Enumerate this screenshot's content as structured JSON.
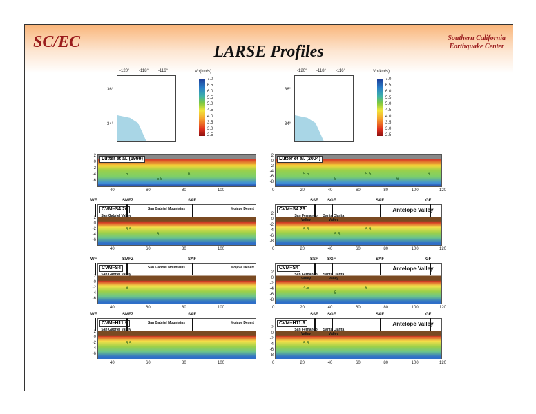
{
  "header": {
    "logo": "SC/EC",
    "org_line1": "Southern California",
    "org_line2": "Earthquake Center",
    "title": "LARSE Profiles"
  },
  "maps": [
    {
      "lon_ticks": [
        "-120°",
        "-118°",
        "-116°"
      ],
      "lat_ticks": [
        "36°",
        "34°"
      ],
      "colorbar_title": "Vp(km/s)",
      "colorbar_ticks": [
        "7.0",
        "6.5",
        "6.0",
        "5.5",
        "5.0",
        "4.5",
        "4.0",
        "3.5",
        "3.0",
        "2.5"
      ]
    },
    {
      "lon_ticks": [
        "-120°",
        "-118°",
        "-116°"
      ],
      "lat_ticks": [
        "36°",
        "34°"
      ],
      "colorbar_title": "Vp(km/s)",
      "colorbar_ticks": [
        "7.0",
        "6.5",
        "6.0",
        "5.5",
        "5.0",
        "4.5",
        "4.0",
        "3.5",
        "3.0",
        "2.5"
      ]
    }
  ],
  "left_axes": {
    "y_ticks": [
      "2",
      "0",
      "-2",
      "-4",
      "-6"
    ],
    "x_ticks": [
      "40",
      "60",
      "80",
      "100"
    ]
  },
  "right_axes": {
    "y_ticks": [
      "2",
      "0",
      "-2",
      "-4",
      "-6",
      "-8"
    ],
    "x_ticks": [
      "0",
      "20",
      "40",
      "60",
      "80",
      "100",
      "120"
    ]
  },
  "left_panels": [
    {
      "label": "Lutter et al. (1999)",
      "type": "lut",
      "contours": [
        "5",
        "5.5",
        "6"
      ]
    },
    {
      "label": "CVM–S4.26",
      "type": "cvm",
      "contours": [
        "5.5",
        "6"
      ]
    },
    {
      "label": "CVM–S4",
      "type": "cvm",
      "contours": [
        "6"
      ]
    },
    {
      "label": "CVM–H11.9",
      "type": "cvm",
      "contours": [
        "5.5"
      ]
    }
  ],
  "right_panels": [
    {
      "label": "Lutter et al. (2004)",
      "type": "lut",
      "contours": [
        "5.5",
        "5",
        "5.5",
        "6",
        "6"
      ]
    },
    {
      "label": "CVM–S4.26",
      "type": "cvm",
      "contours": [
        "5.5",
        "5.5",
        "5.5"
      ]
    },
    {
      "label": "CVM–S4",
      "type": "cvm",
      "contours": [
        "4.5",
        "5",
        "6"
      ]
    },
    {
      "label": "CVM–H11.9",
      "type": "cvm",
      "contours": [
        "5.5"
      ]
    }
  ],
  "left_faults": [
    "WF",
    "SMFZ",
    "SAF"
  ],
  "left_regions": [
    "San Gabriel Valley",
    "San Gabriel Mountains",
    "Mojave Desert"
  ],
  "right_faults": [
    "SSF",
    "SGF",
    "SAF",
    "GF"
  ],
  "right_regions": [
    "San Fernando Valley",
    "Santa Clarita Valley",
    "Antelope Valley"
  ]
}
